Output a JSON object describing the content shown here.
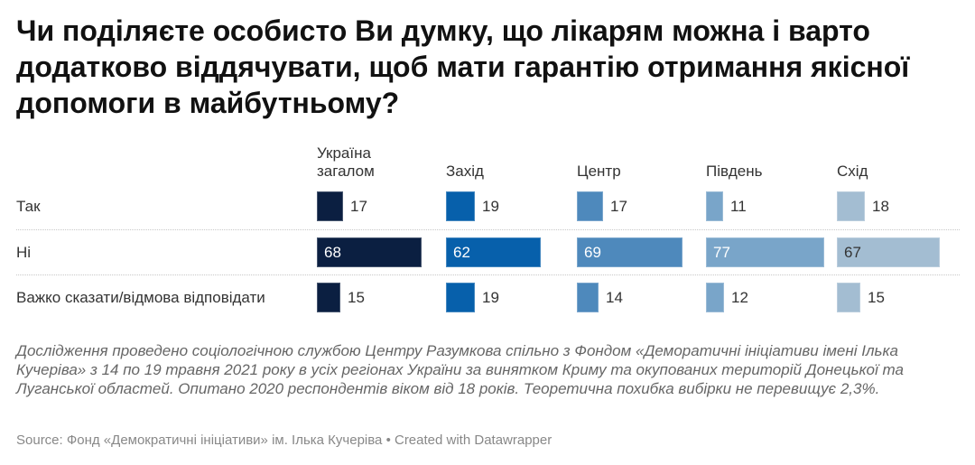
{
  "title": "Чи поділяєте особисто Ви думку, що лікарям можна і варто додатково віддячувати, щоб мати гарантію отримання якісної допомоги в майбутньому?",
  "chart_data": {
    "type": "bar",
    "subtype": "split-bars",
    "title": "Чи поділяєте особисто Ви думку, що лікарям можна і варто додатково віддячувати, щоб мати гарантію отримання якісної допомоги в майбутньому?",
    "categories": [
      "Так",
      "Ні",
      "Важко сказати/відмова відповідати"
    ],
    "series": [
      {
        "name": "Україна загалом",
        "color": "#0b1f41",
        "values": [
          17,
          68,
          15
        ]
      },
      {
        "name": "Захід",
        "color": "#0760ab",
        "values": [
          19,
          62,
          19
        ]
      },
      {
        "name": "Центр",
        "color": "#4e89bc",
        "values": [
          17,
          69,
          14
        ]
      },
      {
        "name": "Південь",
        "color": "#79a5c9",
        "values": [
          11,
          77,
          12
        ]
      },
      {
        "name": "Схід",
        "color": "#a3bdd2",
        "values": [
          18,
          67,
          15
        ]
      }
    ],
    "xlabel": "",
    "ylabel": "",
    "xlim": [
      0,
      100
    ],
    "unit": "%",
    "grid": false,
    "legend": "column-headers-top"
  },
  "column_headers": [
    "Україна загалом",
    "Захід",
    "Центр",
    "Південь",
    "Схід"
  ],
  "notes": "Дослідження проведено соціологічною службою Центру Разумкова спільно з Фондом «Деморатичні ініціативи імені Ілька Кучеріва» з 14 по 19 травня 2021 року в усіх регіонах України за винятком Криму та окупованих територій Донецької та Луганської областей. Опитано 2020 респондентів віком від 18 років. Теоретична похибка вибірки не перевищує 2,3%.",
  "source": "Source: Фонд «Демократичні ініціативи» ім. Ілька Кучеріва • Created with Datawrapper"
}
